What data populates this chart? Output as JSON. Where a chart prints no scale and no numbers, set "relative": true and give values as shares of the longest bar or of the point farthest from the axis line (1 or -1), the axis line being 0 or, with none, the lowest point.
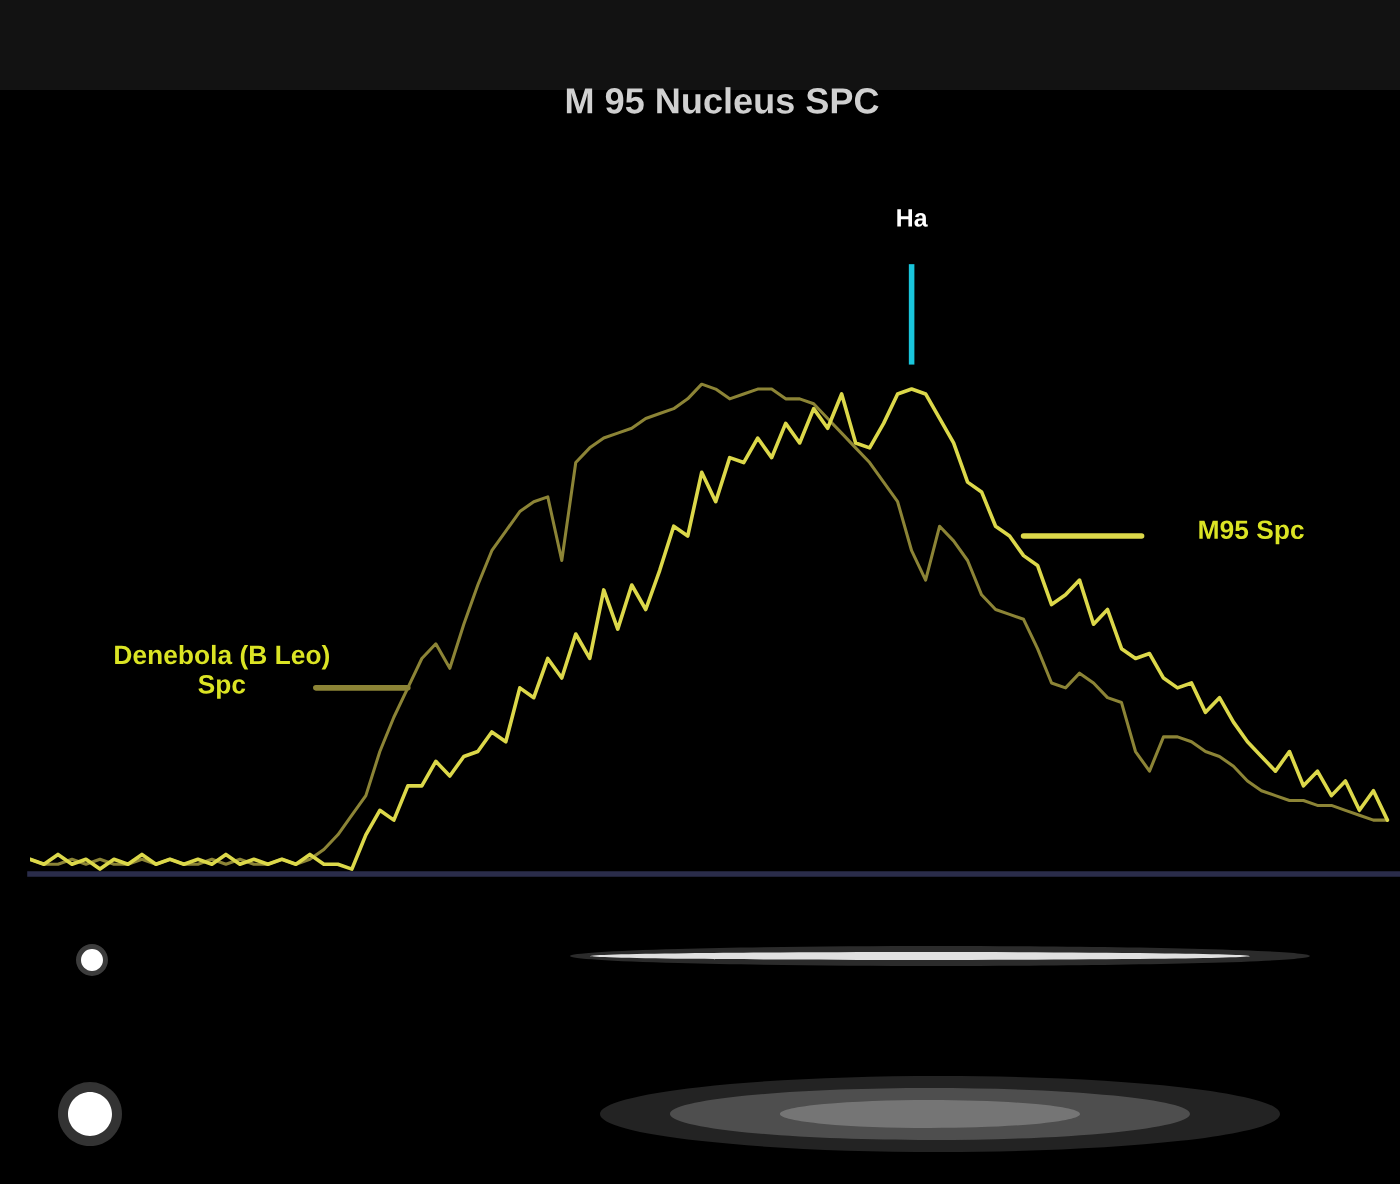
{
  "chart_data": {
    "type": "line",
    "title": "M 95 Nucleus SPC",
    "relative": true,
    "categories": [
      null,
      null,
      null,
      null,
      null,
      null,
      null,
      null,
      null,
      null,
      null,
      null,
      null,
      null,
      null,
      null,
      null,
      null,
      null,
      null,
      null,
      null,
      null,
      null,
      null,
      null,
      null,
      null,
      null,
      null,
      null,
      null,
      null,
      null,
      null,
      null,
      null,
      null,
      null,
      null,
      null,
      null,
      null,
      null,
      null,
      null,
      null,
      null,
      null,
      null,
      null,
      null,
      null,
      null,
      null,
      null,
      null,
      null,
      null,
      null,
      null,
      null,
      null,
      null,
      null,
      null,
      null,
      null,
      null,
      null,
      null,
      null,
      null,
      null,
      null,
      null,
      null,
      null,
      null,
      null,
      null,
      null,
      null,
      null,
      null,
      null,
      null,
      null,
      null,
      null,
      null,
      null,
      null,
      null,
      null,
      null,
      null,
      null
    ],
    "series": [
      {
        "name": "Denebola (B Leo) Spc",
        "color": "#8c8436",
        "values": [
          0.03,
          0.02,
          0.02,
          0.03,
          0.02,
          0.03,
          0.02,
          0.02,
          0.03,
          0.02,
          0.03,
          0.02,
          0.02,
          0.03,
          0.02,
          0.03,
          0.02,
          0.02,
          0.03,
          0.02,
          0.03,
          0.05,
          0.08,
          0.12,
          0.16,
          0.25,
          0.32,
          0.38,
          0.44,
          0.47,
          0.42,
          0.51,
          0.59,
          0.66,
          0.7,
          0.74,
          0.76,
          0.77,
          0.64,
          0.84,
          0.87,
          0.89,
          0.9,
          0.91,
          0.93,
          0.94,
          0.95,
          0.97,
          1.0,
          0.99,
          0.97,
          0.98,
          0.99,
          0.99,
          0.97,
          0.97,
          0.96,
          0.93,
          0.9,
          0.87,
          0.84,
          0.8,
          0.76,
          0.66,
          0.6,
          0.71,
          0.68,
          0.64,
          0.57,
          0.54,
          0.53,
          0.52,
          0.46,
          0.39,
          0.38,
          0.41,
          0.39,
          0.36,
          0.35,
          0.25,
          0.21,
          0.28,
          0.28,
          0.27,
          0.25,
          0.24,
          0.22,
          0.19,
          0.17,
          0.16,
          0.15,
          0.15,
          0.14,
          0.14,
          0.13,
          0.12,
          0.11,
          0.11
        ]
      },
      {
        "name": "M95 Spc",
        "color": "#dcd84a",
        "values": [
          0.03,
          0.02,
          0.04,
          0.02,
          0.03,
          0.01,
          0.03,
          0.02,
          0.04,
          0.02,
          0.03,
          0.02,
          0.03,
          0.02,
          0.04,
          0.02,
          0.03,
          0.02,
          0.03,
          0.02,
          0.04,
          0.02,
          0.02,
          0.01,
          0.08,
          0.13,
          0.11,
          0.18,
          0.18,
          0.23,
          0.2,
          0.24,
          0.25,
          0.29,
          0.27,
          0.38,
          0.36,
          0.44,
          0.4,
          0.49,
          0.44,
          0.58,
          0.5,
          0.59,
          0.54,
          0.62,
          0.71,
          0.69,
          0.82,
          0.76,
          0.85,
          0.84,
          0.89,
          0.85,
          0.92,
          0.88,
          0.95,
          0.91,
          0.98,
          0.88,
          0.87,
          0.92,
          0.98,
          0.99,
          0.98,
          0.93,
          0.88,
          0.8,
          0.78,
          0.71,
          0.69,
          0.65,
          0.63,
          0.55,
          0.57,
          0.6,
          0.51,
          0.54,
          0.46,
          0.44,
          0.45,
          0.4,
          0.38,
          0.39,
          0.33,
          0.36,
          0.31,
          0.27,
          0.24,
          0.21,
          0.25,
          0.18,
          0.21,
          0.16,
          0.19,
          0.13,
          0.17,
          0.11
        ]
      }
    ],
    "annotations": [
      "Ha"
    ]
  }
}
